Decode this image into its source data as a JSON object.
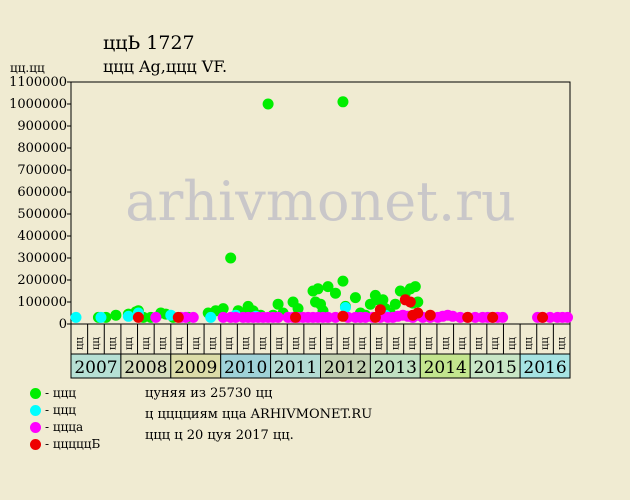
{
  "header": {
    "title": "ццЬ 1727",
    "subtitle": "ццц Ag,ццц VF.",
    "y_unit": "цц.цц"
  },
  "chart_data": {
    "type": "scatter",
    "title": "ццЬ 1727",
    "ylabel": "цц.цц",
    "ylim": [
      0,
      1100000
    ],
    "yticks": [
      0,
      100000,
      200000,
      300000,
      400000,
      500000,
      600000,
      700000,
      800000,
      900000,
      1000000,
      1100000
    ],
    "grid": false,
    "watermark": "arhivmonet.ru",
    "x_axis": {
      "years": [
        "2007",
        "2008",
        "2009",
        "2010",
        "2011",
        "2012",
        "2013",
        "2014",
        "2015",
        "2016"
      ],
      "year_colors": [
        "#b6e0d4",
        "#d7ddbd",
        "#dcdca8",
        "#9fd2d8",
        "#b4dcd4",
        "#c4d2b3",
        "#c1e1c2",
        "#c3e58e",
        "#c8e6c6",
        "#a6e3e3"
      ],
      "quarter_labels": [
        "цц",
        "цц",
        "цц"
      ]
    },
    "series": [
      {
        "name": "ццц",
        "color": "#00ee00",
        "points": [
          [
            2007.55,
            30000
          ],
          [
            2007.7,
            30000
          ],
          [
            2007.9,
            40000
          ],
          [
            2008.15,
            45000
          ],
          [
            2008.3,
            55000
          ],
          [
            2008.35,
            60000
          ],
          [
            2008.45,
            30000
          ],
          [
            2008.6,
            30000
          ],
          [
            2008.8,
            50000
          ],
          [
            2008.9,
            45000
          ],
          [
            2009.05,
            30000
          ],
          [
            2009.35,
            30000
          ],
          [
            2009.75,
            50000
          ],
          [
            2009.9,
            60000
          ],
          [
            2010.05,
            70000
          ],
          [
            2010.2,
            300000
          ],
          [
            2010.35,
            60000
          ],
          [
            2010.45,
            50000
          ],
          [
            2010.55,
            80000
          ],
          [
            2010.65,
            60000
          ],
          [
            2010.8,
            40000
          ],
          [
            2010.95,
            1000000
          ],
          [
            2011.05,
            40000
          ],
          [
            2011.15,
            90000
          ],
          [
            2011.25,
            50000
          ],
          [
            2011.45,
            100000
          ],
          [
            2011.55,
            70000
          ],
          [
            2011.85,
            150000
          ],
          [
            2011.95,
            160000
          ],
          [
            2011.9,
            100000
          ],
          [
            2012.0,
            90000
          ],
          [
            2012.05,
            60000
          ],
          [
            2012.15,
            170000
          ],
          [
            2012.3,
            140000
          ],
          [
            2012.45,
            1010000
          ],
          [
            2012.45,
            195000
          ],
          [
            2012.5,
            80000
          ],
          [
            2012.7,
            120000
          ],
          [
            2012.8,
            50000
          ],
          [
            2012.9,
            40000
          ],
          [
            2013.0,
            90000
          ],
          [
            2013.1,
            130000
          ],
          [
            2013.15,
            110000
          ],
          [
            2013.25,
            110000
          ],
          [
            2013.3,
            70000
          ],
          [
            2013.4,
            50000
          ],
          [
            2013.5,
            90000
          ],
          [
            2013.6,
            150000
          ],
          [
            2013.7,
            140000
          ],
          [
            2013.8,
            160000
          ],
          [
            2013.85,
            95000
          ],
          [
            2013.9,
            170000
          ],
          [
            2013.95,
            100000
          ]
        ]
      },
      {
        "name": "ццц",
        "color": "#00ffff",
        "points": [
          [
            2007.1,
            30000
          ],
          [
            2007.6,
            30000
          ],
          [
            2008.15,
            35000
          ],
          [
            2008.35,
            50000
          ],
          [
            2009.0,
            40000
          ],
          [
            2009.8,
            30000
          ],
          [
            2010.3,
            40000
          ],
          [
            2010.7,
            35000
          ],
          [
            2012.5,
            75000
          ],
          [
            2013.3,
            40000
          ]
        ]
      },
      {
        "name": "ццца",
        "color": "#ff00ff",
        "points": [
          [
            2008.7,
            30000
          ],
          [
            2009.2,
            30000
          ],
          [
            2009.3,
            30000
          ],
          [
            2009.45,
            30000
          ],
          [
            2010.05,
            30000
          ],
          [
            2010.2,
            30000
          ],
          [
            2010.3,
            30000
          ],
          [
            2010.45,
            30000
          ],
          [
            2010.55,
            30000
          ],
          [
            2010.65,
            30000
          ],
          [
            2010.75,
            30000
          ],
          [
            2010.85,
            30000
          ],
          [
            2010.95,
            30000
          ],
          [
            2011.05,
            30000
          ],
          [
            2011.15,
            30000
          ],
          [
            2011.35,
            30000
          ],
          [
            2011.45,
            30000
          ],
          [
            2011.55,
            30000
          ],
          [
            2011.65,
            30000
          ],
          [
            2011.75,
            30000
          ],
          [
            2011.85,
            30000
          ],
          [
            2011.95,
            30000
          ],
          [
            2012.05,
            30000
          ],
          [
            2012.15,
            30000
          ],
          [
            2012.3,
            30000
          ],
          [
            2012.55,
            30000
          ],
          [
            2012.7,
            30000
          ],
          [
            2012.8,
            30000
          ],
          [
            2012.9,
            30000
          ],
          [
            2013.05,
            30000
          ],
          [
            2013.2,
            30000
          ],
          [
            2013.35,
            30000
          ],
          [
            2013.45,
            30000
          ],
          [
            2013.55,
            35000
          ],
          [
            2013.65,
            40000
          ],
          [
            2013.75,
            35000
          ],
          [
            2013.85,
            30000
          ],
          [
            2013.95,
            40000
          ],
          [
            2014.05,
            30000
          ],
          [
            2014.2,
            30000
          ],
          [
            2014.35,
            30000
          ],
          [
            2014.45,
            35000
          ],
          [
            2014.55,
            40000
          ],
          [
            2014.65,
            35000
          ],
          [
            2014.8,
            30000
          ],
          [
            2014.95,
            30000
          ],
          [
            2015.1,
            30000
          ],
          [
            2015.25,
            30000
          ],
          [
            2015.35,
            30000
          ],
          [
            2015.45,
            30000
          ],
          [
            2015.55,
            30000
          ],
          [
            2015.65,
            30000
          ],
          [
            2016.35,
            30000
          ],
          [
            2016.45,
            30000
          ],
          [
            2016.6,
            30000
          ],
          [
            2016.75,
            30000
          ],
          [
            2016.85,
            30000
          ],
          [
            2016.95,
            30000
          ]
        ]
      },
      {
        "name": "цццццБ",
        "color": "#ee0000",
        "points": [
          [
            2008.35,
            30000
          ],
          [
            2009.15,
            30000
          ],
          [
            2011.5,
            30000
          ],
          [
            2012.45,
            35000
          ],
          [
            2013.1,
            30000
          ],
          [
            2013.2,
            65000
          ],
          [
            2013.7,
            110000
          ],
          [
            2013.8,
            100000
          ],
          [
            2013.85,
            40000
          ],
          [
            2013.95,
            50000
          ],
          [
            2014.2,
            40000
          ],
          [
            2014.95,
            30000
          ],
          [
            2015.45,
            30000
          ],
          [
            2016.45,
            30000
          ]
        ]
      }
    ]
  },
  "info": {
    "line1": "цуняя из 25730 цц",
    "line2": "ц цццциям цца ARHIVMONET.RU",
    "line3": "ццц ц 20 цуя 2017 цц."
  }
}
